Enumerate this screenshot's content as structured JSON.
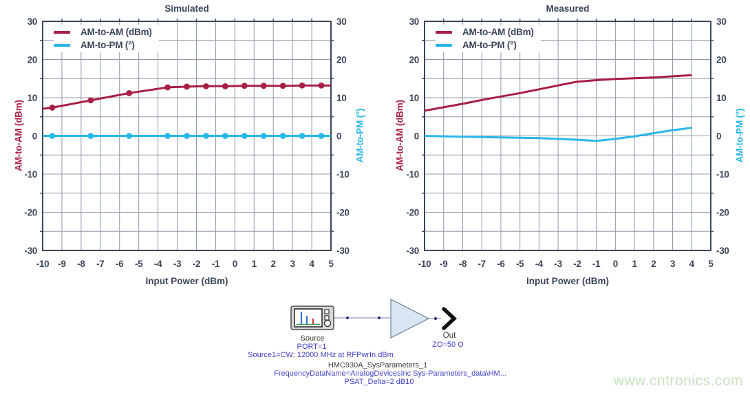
{
  "colors": {
    "axis_text": "#3b4659",
    "grid": "#9097a6",
    "frame": "#3b4659",
    "am_am_red": "#a81e45",
    "am_pm_cyan": "#29b7e9",
    "param_blue": "#4343cb",
    "diagram_dark_text": "#3a3a3a",
    "watermark_green": "#c7e5bf",
    "amp_fill": "#d9e7f4",
    "wire": "#8b97c6"
  },
  "chart_data": [
    {
      "type": "line",
      "title": "Simulated",
      "xlabel": "Input Power (dBm)",
      "ylabel_left": "AM-to-AM (dBm)",
      "ylabel_right": "AM-to-PM (°)",
      "xlim": [
        -10,
        5
      ],
      "ylim": [
        -30,
        30
      ],
      "xticks": [
        -10,
        -9,
        -8,
        -7,
        -6,
        -5,
        -4,
        -3,
        -2,
        -1,
        0,
        1,
        2,
        3,
        4,
        5
      ],
      "yticks": [
        30,
        20,
        10,
        0,
        -10,
        -20,
        -30
      ],
      "grid": "on",
      "legend_position": "top-left",
      "series": [
        {
          "name": "AM-to-AM (dBm)",
          "color": "#a81e45",
          "markers": "inner",
          "x": [
            -10,
            -9.5,
            -7.5,
            -5.5,
            -3.5,
            -2.5,
            -1.5,
            -0.5,
            0.5,
            1.5,
            2.5,
            3.5,
            4.5,
            5
          ],
          "y": [
            7.1,
            7.4,
            9.3,
            11.2,
            12.7,
            12.9,
            13.0,
            13.0,
            13.1,
            13.1,
            13.1,
            13.2,
            13.2,
            13.2
          ]
        },
        {
          "name": "AM-to-PM (°)",
          "color": "#29b7e9",
          "markers": "inner",
          "x": [
            -10,
            -9.5,
            -7.5,
            -5.5,
            -3.5,
            -2.5,
            -1.5,
            -0.5,
            0.5,
            1.5,
            2.5,
            3.5,
            4.5,
            5
          ],
          "y": [
            0,
            0,
            0,
            0,
            0,
            0,
            0,
            0,
            0,
            0,
            0,
            0,
            0,
            0
          ]
        }
      ]
    },
    {
      "type": "line",
      "title": "Measured",
      "xlabel": "Input Power (dBm)",
      "ylabel_left": "AM-to-AM (dBm)",
      "ylabel_right": "AM-to-PM (°)",
      "xlim": [
        -10,
        5
      ],
      "ylim": [
        -30,
        30
      ],
      "xticks": [
        -10,
        -9,
        -8,
        -7,
        -6,
        -5,
        -4,
        -3,
        -2,
        -1,
        0,
        1,
        2,
        3,
        4,
        5
      ],
      "yticks": [
        30,
        20,
        10,
        0,
        -10,
        -20,
        -30
      ],
      "grid": "on",
      "legend_position": "top-left",
      "series": [
        {
          "name": "AM-to-AM (dBm)",
          "color": "#a81e45",
          "markers": "none",
          "x": [
            -10,
            -9,
            -8,
            -7,
            -6,
            -5,
            -4,
            -3,
            -2,
            -1,
            0,
            1,
            2,
            3,
            4
          ],
          "y": [
            6.6,
            7.5,
            8.4,
            9.4,
            10.3,
            11.2,
            12.2,
            13.2,
            14.2,
            14.6,
            14.9,
            15.1,
            15.3,
            15.6,
            15.9
          ]
        },
        {
          "name": "AM-to-PM (°)",
          "color": "#29b7e9",
          "markers": "none",
          "x": [
            -10,
            -9,
            -8,
            -7,
            -6,
            -5,
            -4,
            -3,
            -2,
            -1,
            0,
            1,
            2,
            3,
            4
          ],
          "y": [
            0,
            -0.1,
            -0.2,
            -0.3,
            -0.4,
            -0.5,
            -0.6,
            -0.8,
            -1.0,
            -1.3,
            -0.8,
            -0.1,
            0.7,
            1.5,
            2.1
          ]
        }
      ]
    }
  ],
  "diagram": {
    "source": {
      "label": "Source",
      "port": "PORT=1",
      "config": "Source1=CW: 12000 MHz at RFPwrIn dBm"
    },
    "amplifier": {
      "name": "HMC930A_SysParameters_1",
      "frequency_data": "FrequencyDataName=AnalogDevicesInc Sys-Parameters_data\\HM...",
      "psat": "PSAT_Delta=2 dB10"
    },
    "output": {
      "label": "Out",
      "impedance": "ZO=50 O"
    }
  },
  "watermark": {
    "text": "www.cntronics.com"
  }
}
